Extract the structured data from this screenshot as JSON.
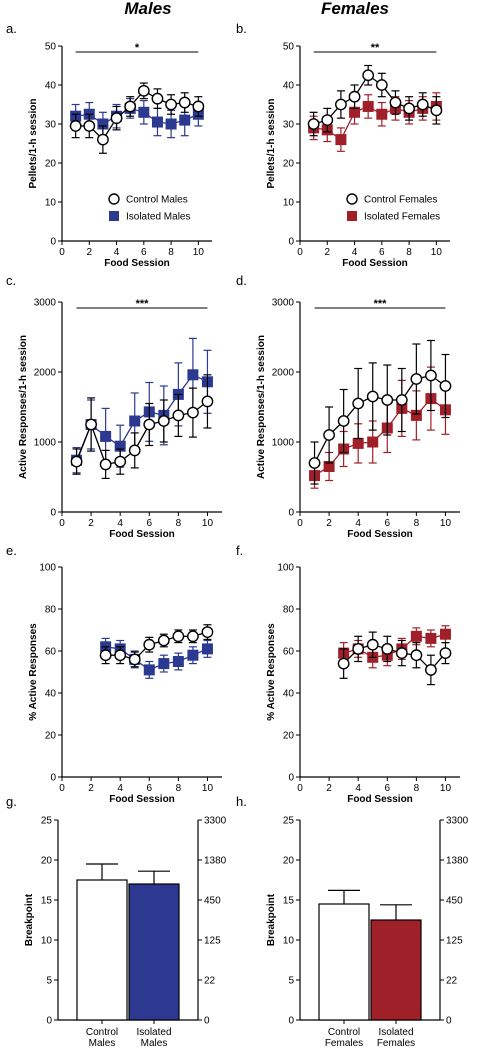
{
  "column_titles": [
    "Males",
    "Females"
  ],
  "colors": {
    "control_fill": "#ffffff",
    "isolated_males": "#2b3990",
    "isolated_females": "#a0202a",
    "axis": "#000000"
  },
  "chart_data": [
    {
      "id": "a",
      "type": "line",
      "letter": "a.",
      "xlabel": "Food Session",
      "ylabel": "Pellets/1-h session",
      "xlim": [
        0,
        11
      ],
      "ylim": [
        0,
        50
      ],
      "xticks": [
        0,
        2,
        4,
        6,
        8,
        10
      ],
      "yticks": [
        0,
        10,
        20,
        30,
        40,
        50
      ],
      "significance": "*",
      "sig_bracket": [
        1,
        10
      ],
      "legend": {
        "position": "bottom-right"
      },
      "x": [
        1,
        2,
        3,
        4,
        5,
        6,
        7,
        8,
        9,
        10
      ],
      "series": [
        {
          "name": "Control Males",
          "style": "control",
          "values": [
            29.5,
            29.5,
            26,
            31.5,
            34.5,
            38.5,
            36.5,
            35,
            35.5,
            34.5
          ],
          "err": [
            3,
            3,
            3.5,
            3,
            2.5,
            2,
            2.5,
            2.5,
            2.5,
            2.5
          ]
        },
        {
          "name": "Isolated Males",
          "style": "isolated_males",
          "values": [
            32,
            32.5,
            30,
            32,
            34,
            33,
            30.5,
            30,
            31,
            32.5
          ],
          "err": [
            3,
            3,
            3,
            3,
            2.5,
            3,
            3.5,
            3.5,
            4,
            3
          ]
        }
      ]
    },
    {
      "id": "b",
      "type": "line",
      "letter": "b.",
      "xlabel": "Food Session",
      "ylabel": "Pellets/1-h session",
      "xlim": [
        0,
        11
      ],
      "ylim": [
        0,
        50
      ],
      "xticks": [
        0,
        2,
        4,
        6,
        8,
        10
      ],
      "yticks": [
        0,
        10,
        20,
        30,
        40,
        50
      ],
      "significance": "**",
      "sig_bracket": [
        1,
        10
      ],
      "legend": {
        "position": "bottom-right"
      },
      "x": [
        1,
        2,
        3,
        4,
        5,
        6,
        7,
        8,
        9,
        10
      ],
      "series": [
        {
          "name": "Control Females",
          "style": "control",
          "values": [
            30,
            31,
            35,
            37,
            42.5,
            40,
            35.5,
            34,
            35,
            33.5
          ],
          "err": [
            3,
            3,
            3.5,
            3,
            2.5,
            3,
            3,
            3,
            3,
            3.5
          ]
        },
        {
          "name": "Isolated Females",
          "style": "isolated_females",
          "values": [
            29,
            28.5,
            26,
            33,
            34.5,
            32.5,
            34,
            33,
            34,
            34.5
          ],
          "err": [
            3,
            3,
            3,
            3,
            3,
            3,
            3,
            3,
            3,
            3.5
          ]
        }
      ]
    },
    {
      "id": "c",
      "type": "line",
      "letter": "c.",
      "xlabel": "Food Session",
      "ylabel": "Active Responses/1-h session",
      "xlim": [
        0,
        11
      ],
      "ylim": [
        0,
        3000
      ],
      "xticks": [
        0,
        2,
        4,
        6,
        8,
        10
      ],
      "yticks": [
        0,
        1000,
        2000,
        3000
      ],
      "significance": "***",
      "sig_bracket": [
        1,
        10
      ],
      "x": [
        1,
        2,
        3,
        4,
        5,
        6,
        7,
        8,
        9,
        10
      ],
      "series": [
        {
          "name": "Control Males",
          "style": "control",
          "values": [
            720,
            1250,
            680,
            720,
            880,
            1250,
            1300,
            1380,
            1420,
            1580
          ],
          "err": [
            180,
            380,
            200,
            180,
            250,
            300,
            300,
            300,
            350,
            380
          ]
        },
        {
          "name": "Isolated Males",
          "style": "isolated_males",
          "values": [
            740,
            1250,
            1080,
            940,
            1300,
            1430,
            1380,
            1680,
            1960,
            1860
          ],
          "err": [
            180,
            350,
            400,
            300,
            400,
            420,
            420,
            450,
            520,
            450
          ]
        }
      ]
    },
    {
      "id": "d",
      "type": "line",
      "letter": "d.",
      "xlabel": "Food Session",
      "ylabel": "Active Responses/1-h session",
      "xlim": [
        0,
        11
      ],
      "ylim": [
        0,
        3000
      ],
      "xticks": [
        0,
        2,
        4,
        6,
        8,
        10
      ],
      "yticks": [
        0,
        1000,
        2000,
        3000
      ],
      "significance": "***",
      "sig_bracket": [
        1,
        10
      ],
      "x": [
        1,
        2,
        3,
        4,
        5,
        6,
        7,
        8,
        9,
        10
      ],
      "series": [
        {
          "name": "Control Females",
          "style": "control",
          "values": [
            700,
            1100,
            1300,
            1550,
            1650,
            1600,
            1600,
            1900,
            1950,
            1800
          ],
          "err": [
            300,
            400,
            450,
            500,
            480,
            500,
            450,
            500,
            500,
            450
          ]
        },
        {
          "name": "Isolated Females",
          "style": "isolated_females",
          "values": [
            520,
            650,
            900,
            980,
            1000,
            1200,
            1480,
            1380,
            1620,
            1460
          ],
          "err": [
            180,
            200,
            250,
            280,
            300,
            350,
            400,
            350,
            450,
            350
          ]
        }
      ]
    },
    {
      "id": "e",
      "type": "line",
      "letter": "e.",
      "xlabel": "Food Session",
      "ylabel": "% Active Responses",
      "xlim": [
        0,
        11
      ],
      "ylim": [
        0,
        100
      ],
      "xticks": [
        0,
        2,
        4,
        6,
        8,
        10
      ],
      "yticks": [
        0,
        20,
        40,
        60,
        80,
        100
      ],
      "x": [
        3,
        4,
        5,
        6,
        7,
        8,
        9,
        10
      ],
      "series": [
        {
          "name": "Control Males",
          "style": "control",
          "values": [
            58,
            58,
            56,
            63,
            65,
            67,
            67,
            69
          ],
          "err": [
            4,
            4,
            3.5,
            3.5,
            3,
            3,
            3,
            3.5
          ]
        },
        {
          "name": "Isolated Males",
          "style": "isolated_males",
          "values": [
            62,
            61,
            56,
            51,
            54,
            55,
            58,
            61
          ],
          "err": [
            4,
            4,
            4,
            4,
            4,
            4,
            4,
            4
          ]
        }
      ]
    },
    {
      "id": "f",
      "type": "line",
      "letter": "f.",
      "xlabel": "Food Session",
      "ylabel": "% Active Responses",
      "xlim": [
        0,
        11
      ],
      "ylim": [
        0,
        100
      ],
      "xticks": [
        0,
        2,
        4,
        6,
        8,
        10
      ],
      "yticks": [
        0,
        20,
        40,
        60,
        80,
        100
      ],
      "x": [
        3,
        4,
        5,
        6,
        7,
        8,
        9,
        10
      ],
      "series": [
        {
          "name": "Control Females",
          "style": "control",
          "values": [
            54,
            61,
            63,
            61,
            59,
            58,
            51,
            59
          ],
          "err": [
            7,
            6,
            6,
            6,
            6,
            6,
            7,
            5
          ]
        },
        {
          "name": "Isolated Females",
          "style": "isolated_females",
          "values": [
            59,
            61,
            57,
            58,
            61,
            67,
            66,
            68
          ],
          "err": [
            5,
            4,
            5,
            5,
            5,
            4,
            4,
            4
          ]
        }
      ]
    },
    {
      "id": "g",
      "type": "bar",
      "letter": "g.",
      "ylabel": "Breakpoint",
      "ylim": [
        0,
        25
      ],
      "yticks": [
        0,
        5,
        10,
        15,
        20,
        25
      ],
      "right_ticks": [
        "0",
        "22",
        "125",
        "450",
        "1380",
        "3300"
      ],
      "categories": [
        "Control Males",
        "Isolated Males"
      ],
      "category_lines": [
        [
          "Control",
          "Males"
        ],
        [
          "Isolated",
          "Males"
        ]
      ],
      "bar_styles": [
        "control",
        "isolated_males"
      ],
      "values": [
        17.5,
        17
      ],
      "err": [
        2,
        1.6
      ]
    },
    {
      "id": "h",
      "type": "bar",
      "letter": "h.",
      "ylabel": "Breakpoint",
      "ylim": [
        0,
        25
      ],
      "yticks": [
        0,
        5,
        10,
        15,
        20,
        25
      ],
      "right_ticks": [
        "0",
        "22",
        "125",
        "450",
        "1380",
        "3300"
      ],
      "categories": [
        "Control Females",
        "Isolated Females"
      ],
      "category_lines": [
        [
          "Control",
          "Females"
        ],
        [
          "Isolated",
          "Females"
        ]
      ],
      "bar_styles": [
        "control",
        "isolated_females"
      ],
      "values": [
        14.5,
        12.5
      ],
      "err": [
        1.7,
        1.9
      ]
    }
  ]
}
